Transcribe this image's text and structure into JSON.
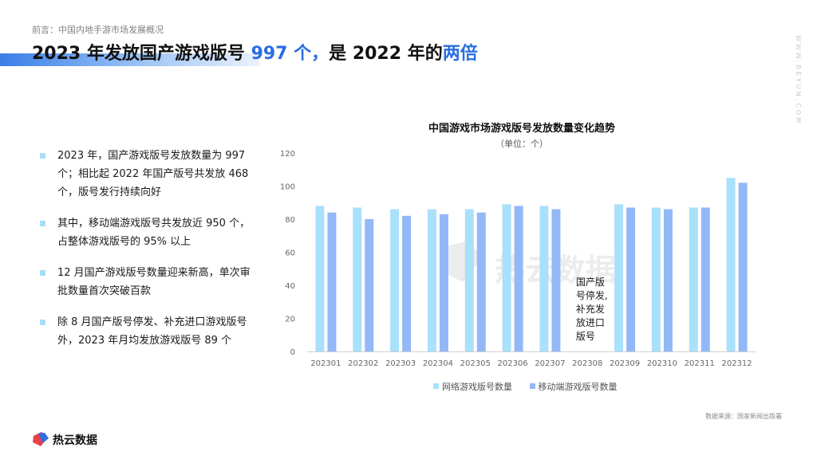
{
  "header": {
    "breadcrumb": "前言：中国内地手游市场发展概况",
    "title_part1": "2023 年发放国产游戏版号 ",
    "title_highlight1": "997 个，",
    "title_part2": "是 2022 年的",
    "title_highlight2": "两倍",
    "accent_color": "#2a6de0"
  },
  "side_brand": "WWW.REYUN.COM",
  "bullets": [
    "2023 年，国产游戏版号发放数量为 997个；相比起 2022 年国产版号共发放 468 个，版号发行持续向好",
    "其中，移动端游戏版号共发放近 950 个，占整体游戏版号的 95% 以上",
    "12 月国产游戏版号数量迎来新高，单次审批数量首次突破百款",
    "除 8 月国产版号停发、补充进口游戏版号外，2023 年月均发放游戏版号 89 个"
  ],
  "chart_data": {
    "type": "bar",
    "title": "中国游戏市场游戏版号发放数量变化趋势",
    "subtitle": "（单位：个）",
    "categories": [
      "202301",
      "202302",
      "202303",
      "202304",
      "202305",
      "202306",
      "202307",
      "202308",
      "202309",
      "202310",
      "202311",
      "202312"
    ],
    "series": [
      {
        "name": "网络游戏版号数量",
        "color": "#a9e0fb",
        "values": [
          88,
          87,
          86,
          86,
          86,
          89,
          88,
          null,
          89,
          87,
          87,
          105
        ]
      },
      {
        "name": "移动端游戏版号数量",
        "color": "#93b8f8",
        "values": [
          84,
          80,
          82,
          83,
          84,
          88,
          86,
          null,
          87,
          86,
          87,
          102
        ]
      }
    ],
    "ylim": [
      0,
      120
    ],
    "yticks": [
      0,
      20,
      40,
      60,
      80,
      100,
      120
    ],
    "annotation": {
      "category": "202308",
      "lines": [
        "国产版",
        "号停发,",
        "补充发",
        "放进口",
        "版号"
      ]
    },
    "grid": false,
    "legend_position": "bottom"
  },
  "source": "数据来源：国家新闻出版署",
  "brand": {
    "name": "热云数据"
  },
  "watermark": "热云数据"
}
